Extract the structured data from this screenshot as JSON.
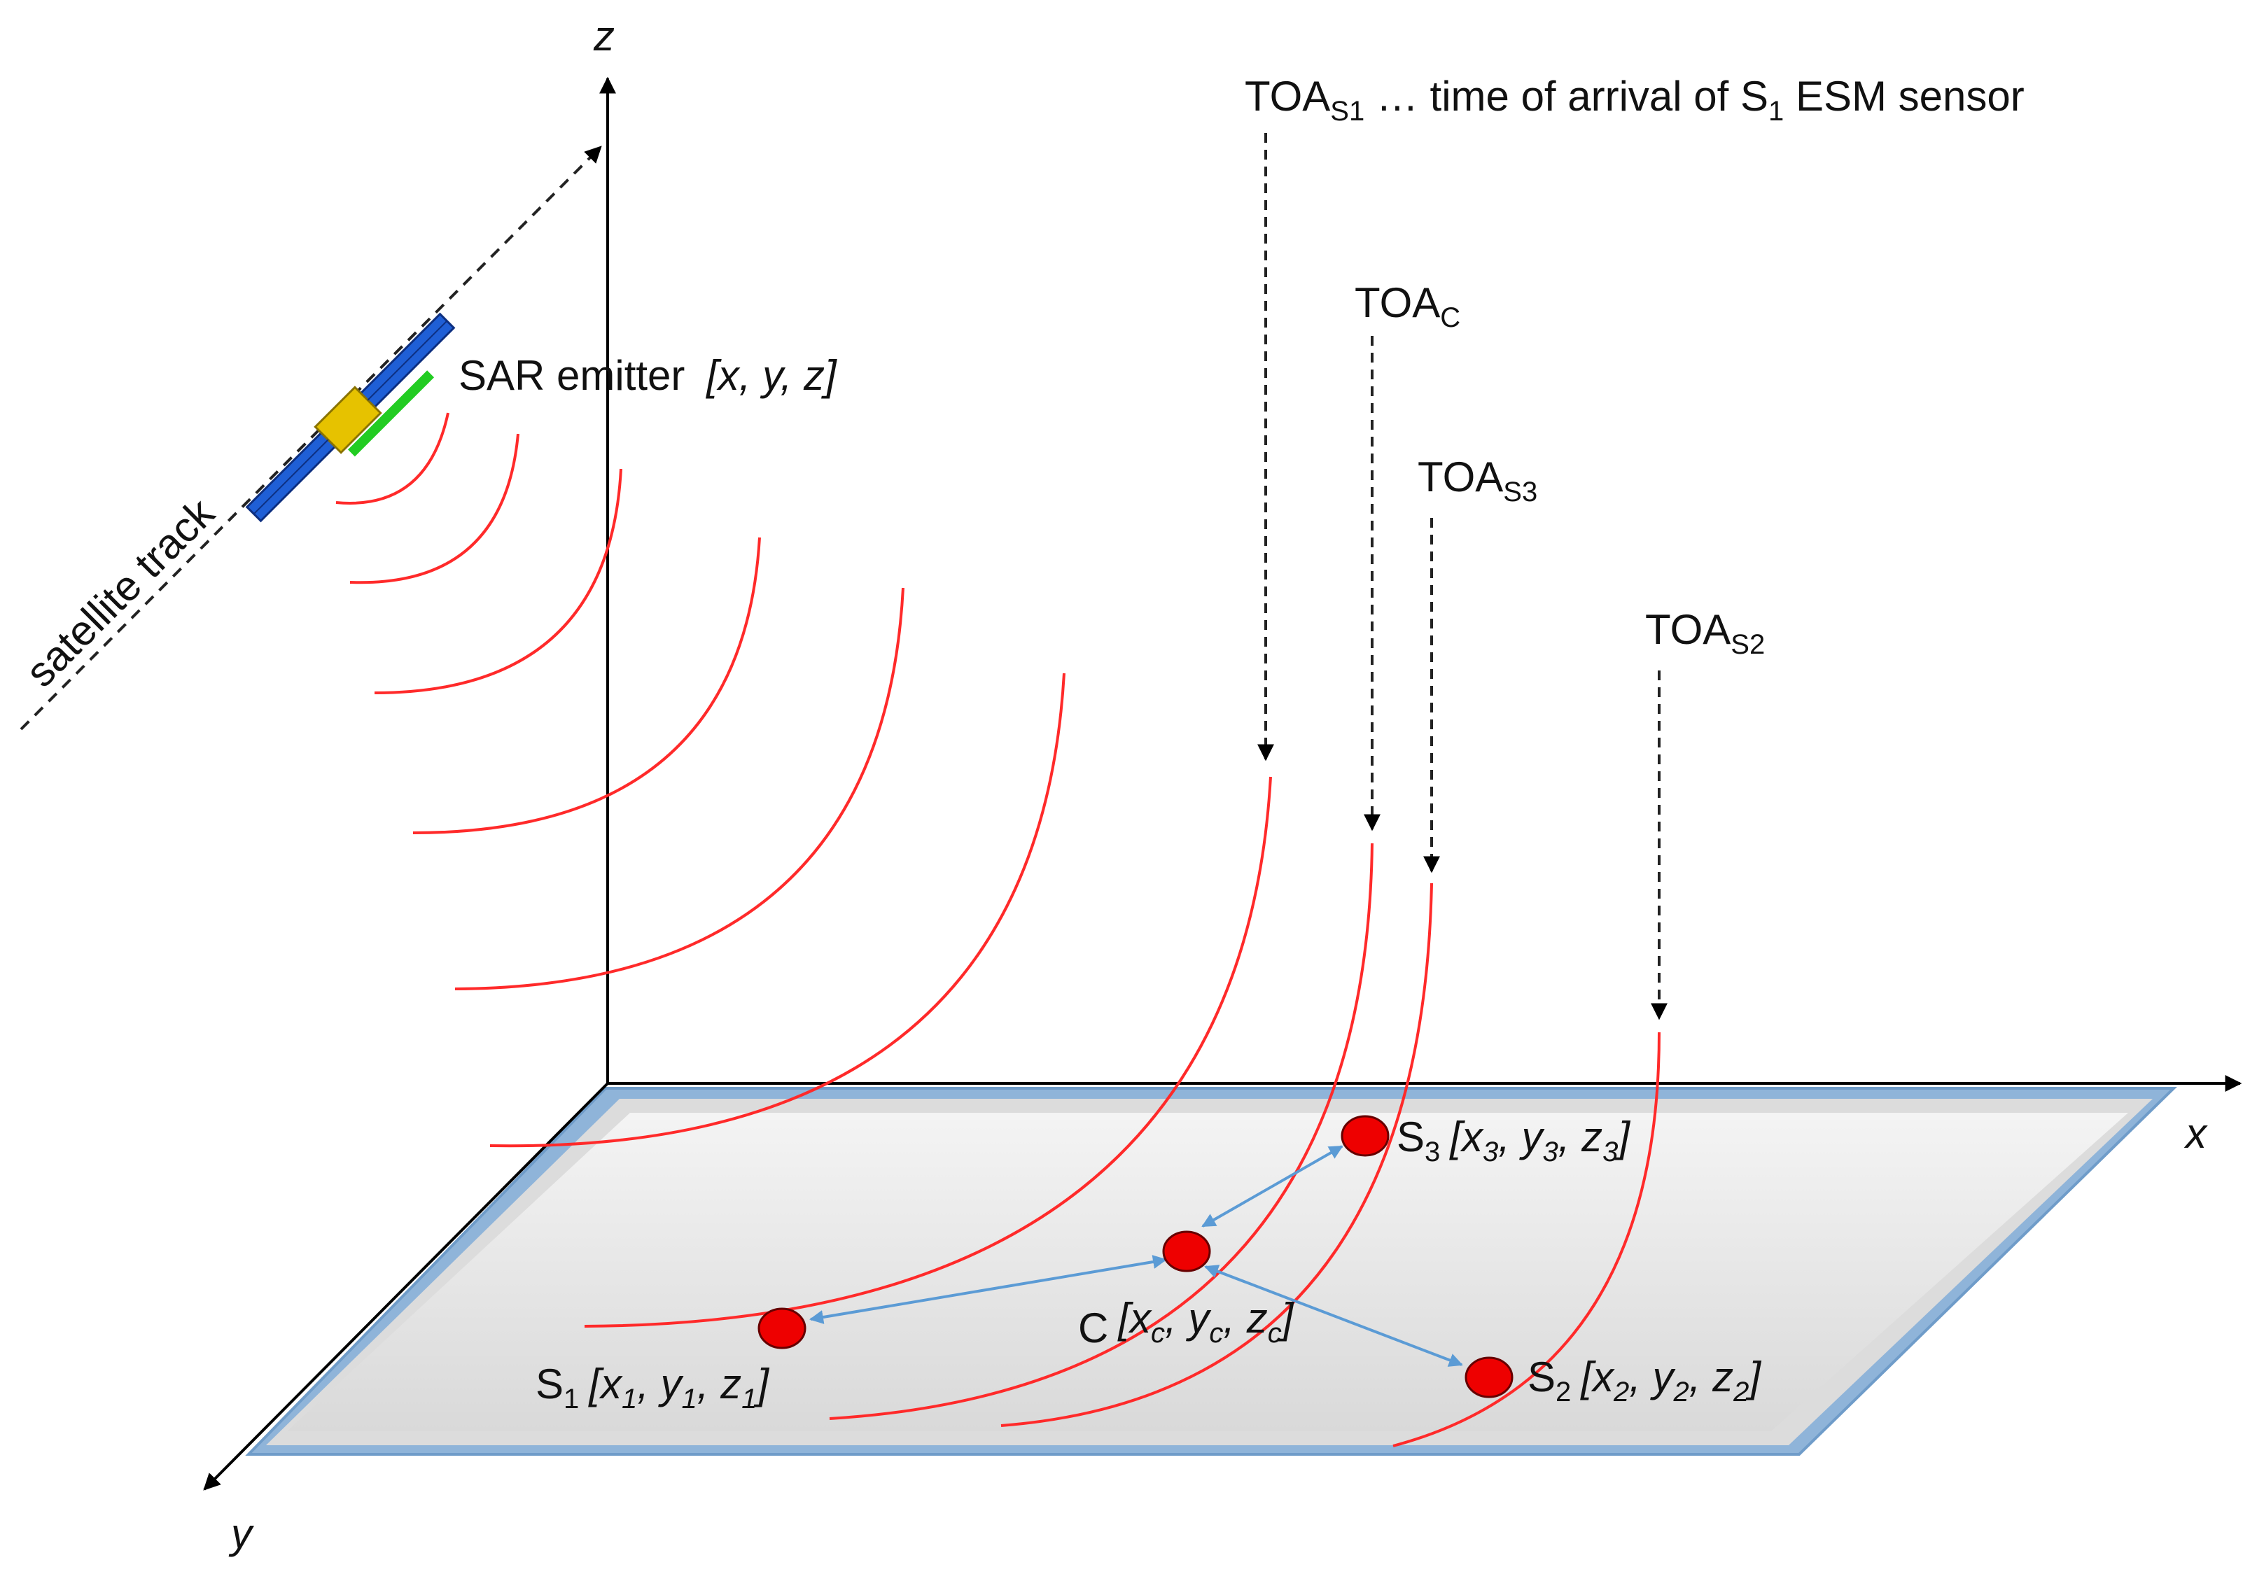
{
  "axes": {
    "x": "x",
    "y": "y",
    "z": "z"
  },
  "satellite_track": "satellite track",
  "emitter": {
    "name": "SAR emitter",
    "coords": "[x, y, z]"
  },
  "toa_labels": [
    {
      "base": "TOA",
      "sub": "S1",
      "note_before": " … time of arrival of S",
      "note_sub": "1",
      "note_after": " ESM sensor"
    },
    {
      "base": "TOA",
      "sub": "C"
    },
    {
      "base": "TOA",
      "sub": "S3"
    },
    {
      "base": "TOA",
      "sub": "S2"
    }
  ],
  "sensors": [
    {
      "name": "S",
      "sub": "1",
      "c": [
        "x",
        "1",
        "y",
        "1",
        "z",
        "1"
      ]
    },
    {
      "name": "C",
      "sub": "",
      "c": [
        "x",
        "c",
        "y",
        "c",
        "z",
        "c"
      ]
    },
    {
      "name": "S",
      "sub": "2",
      "c": [
        "x",
        "2",
        "y",
        "2",
        "z",
        "2"
      ]
    },
    {
      "name": "S",
      "sub": "3",
      "c": [
        "x",
        "3",
        "y",
        "3",
        "z",
        "3"
      ]
    }
  ],
  "colors": {
    "wavefront": "#ff2a2a",
    "sensor_fill": "#ee0000",
    "link": "#5b9bd5",
    "plane_fill": "#e8e8e8",
    "plane_edge": "#8fb4d9",
    "solar_panel": "#1f5fd6",
    "antenna": "#22cc22",
    "satellite_body": "#e6c200"
  }
}
